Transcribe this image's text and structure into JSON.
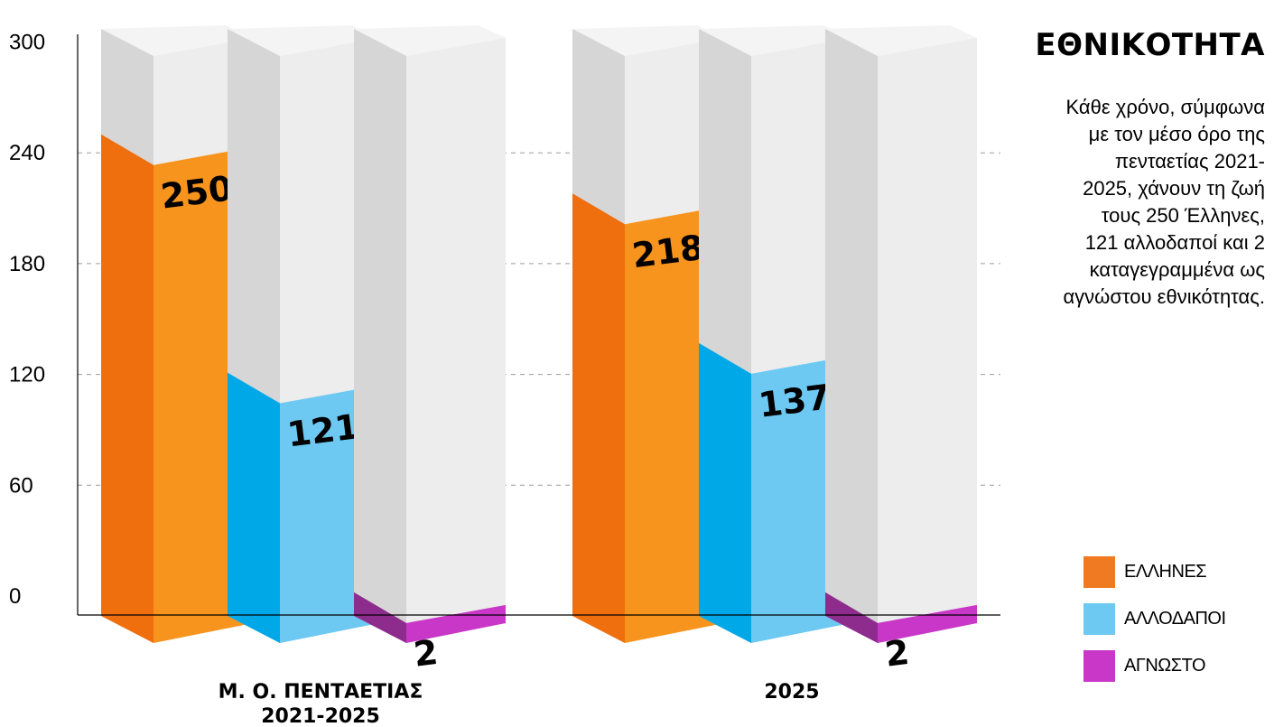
{
  "chart_data": {
    "type": "bar",
    "title": "ΕΘΝΙΚΟΤΗΤΑ",
    "subtitle": "Κάθε χρόνο, σύμφωνα με τον μέσο όρο της πενταετίας 2021-2025, χάνουν τη ζωή τους 250 Έλληνες, 121 αλλοδαποί και 2 καταγεγραμμένα ως αγνώστου εθνικότητας.",
    "subtitle_lines": [
      "Κάθε χρόνο, σύμφωνα",
      "με τον μέσο όρο της",
      "πενταετίας 2021-",
      "2025, χάνουν τη ζωή",
      "τους 250 Έλληνες,",
      "121 αλλοδαποί και 2",
      "καταγεγραμμένα ως",
      "αγνώστου εθνικότητας."
    ],
    "categories": [
      "Μ. Ο. ΠΕΝΤΑΕΤΙΑΣ 2021-2025",
      "2025"
    ],
    "category_lines": [
      [
        "Μ. Ο. ΠΕΝΤΑΕΤΙΑΣ",
        "2021-2025"
      ],
      [
        "2025"
      ]
    ],
    "series": [
      {
        "name": "ΕΛΛΗΝΕΣ",
        "values": [
          250,
          218
        ],
        "color": "#F7941D",
        "side_color": "#EF6F0F"
      },
      {
        "name": "ΑΛΛΟΔΑΠΟΙ",
        "values": [
          121,
          137
        ],
        "color": "#6DC8F2",
        "side_color": "#00A8E8"
      },
      {
        "name": "ΑΓΝΩΣΤΟ",
        "values": [
          2,
          2
        ],
        "color": "#C937C8",
        "side_color": "#8E2C8E"
      }
    ],
    "ylim": [
      0,
      300
    ],
    "yticks": [
      0,
      60,
      120,
      180,
      240,
      300
    ],
    "grid": true,
    "legend": "bottom-right",
    "background_column_color": "#EDEDED",
    "background_side_color": "#D6D6D6"
  }
}
